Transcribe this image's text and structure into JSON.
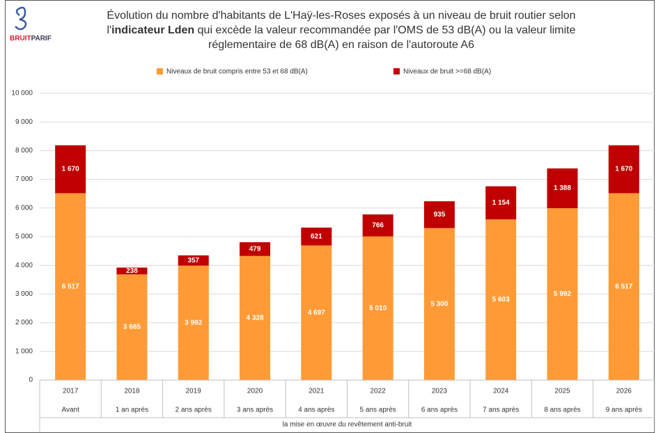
{
  "logo": [
    "BRUIT",
    "PARIF"
  ],
  "chart_data": {
    "type": "stacked_bar",
    "title_parts": [
      {
        "text": "Évolution du nombre d'habitants de L'Haÿ-les-Roses exposés à un niveau de bruit routier selon l'",
        "bold": false
      },
      {
        "text": "indicateur Lden",
        "bold": true
      },
      {
        "text": " qui excède la valeur recommandée par l'OMS de 53 dB(A) ou la valeur limite réglementaire de 68 dB(A) en raison de l'autoroute A6",
        "bold": false
      }
    ],
    "categories": [
      "2017",
      "2018",
      "2019",
      "2020",
      "2021",
      "2022",
      "2023",
      "2024",
      "2025",
      "2026"
    ],
    "sub_categories": [
      "Avant",
      "1 an après",
      "2 ans après",
      "3 ans après",
      "4 ans après",
      "5 ans après",
      "6 ans après",
      "7 ans après",
      "8 ans après",
      "9 ans après"
    ],
    "x_group_label": "la mise en œuvre du revêtement anti-bruit",
    "series": [
      {
        "name": "Niveaux de bruit compris entre 53 et 68 dB(A)",
        "color": "#ff9b37",
        "values": [
          6517,
          3685,
          3992,
          4328,
          4697,
          5010,
          5300,
          5603,
          5992,
          6517
        ],
        "value_labels": [
          "6 517",
          "3 685",
          "3 992",
          "4 328",
          "4 697",
          "5 010",
          "5 300",
          "5 603",
          "5 992",
          "6 517"
        ]
      },
      {
        "name": "Niveaux de bruit >=68 dB(A)",
        "color": "#c00000",
        "values": [
          1670,
          238,
          357,
          479,
          621,
          766,
          935,
          1154,
          1388,
          1670
        ],
        "value_labels": [
          "1 670",
          "238",
          "357",
          "479",
          "621",
          "766",
          "935",
          "1 154",
          "1 388",
          "1 670"
        ]
      }
    ],
    "ylim": [
      0,
      10000
    ],
    "yticks": [
      0,
      {
        "value": 1000,
        "label": "1 000"
      },
      {
        "value": 2000,
        "label": "2 000"
      },
      {
        "value": 3000,
        "label": "3 000"
      },
      {
        "value": 4000,
        "label": "4 000"
      },
      {
        "value": 5000,
        "label": "5 000"
      },
      {
        "value": 6000,
        "label": "6 000"
      },
      {
        "value": 7000,
        "label": "7 000"
      },
      {
        "value": 8000,
        "label": "8 000"
      },
      {
        "value": 9000,
        "label": "9 000"
      },
      {
        "value": 10000,
        "label": "10 000"
      }
    ],
    "grid": true,
    "legend": "top"
  }
}
